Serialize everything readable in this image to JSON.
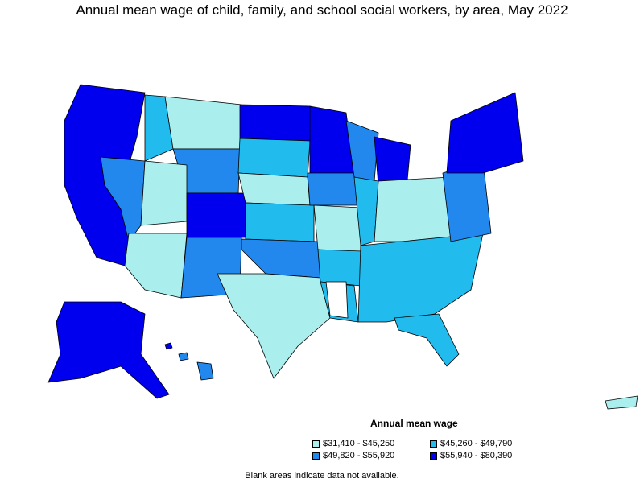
{
  "title": "Annual mean wage of child, family, and school social workers, by area, May 2022",
  "legend": {
    "title": "Annual mean wage",
    "items": [
      {
        "label": "$31,410 - $45,250",
        "color": "#aaeeee"
      },
      {
        "label": "$45,260 - $49,790",
        "color": "#22bbee"
      },
      {
        "label": "$49,820 - $55,920",
        "color": "#2288ee"
      },
      {
        "label": "$55,940 - $80,390",
        "color": "#0000ee"
      }
    ]
  },
  "note": "Blank areas indicate data not available."
}
